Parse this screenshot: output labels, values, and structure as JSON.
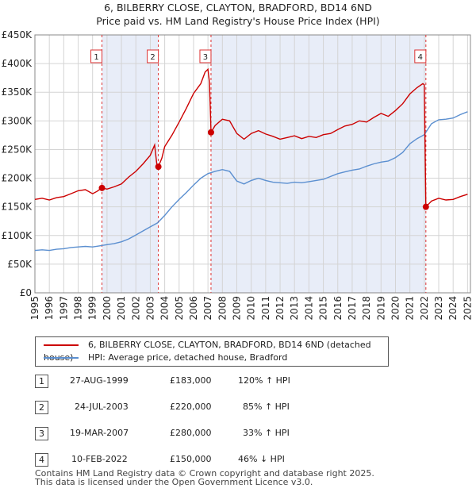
{
  "chart_data": {
    "type": "line",
    "title": "6, BILBERRY CLOSE, CLAYTON, BRADFORD, BD14 6ND",
    "subtitle": "Price paid vs. HM Land Registry's House Price Index (HPI)",
    "ylim": [
      0,
      450000
    ],
    "xlim": [
      1995,
      2025.2
    ],
    "y_ticks": [
      0,
      50000,
      100000,
      150000,
      200000,
      250000,
      300000,
      350000,
      400000,
      450000
    ],
    "y_tick_labels": [
      "£0",
      "£50K",
      "£100K",
      "£150K",
      "£200K",
      "£250K",
      "£300K",
      "£350K",
      "£400K",
      "£450K"
    ],
    "x_ticks": [
      "1995",
      "1996",
      "1997",
      "1998",
      "1999",
      "2000",
      "2001",
      "2002",
      "2003",
      "2004",
      "2005",
      "2006",
      "2007",
      "2008",
      "2009",
      "2010",
      "2011",
      "2012",
      "2013",
      "2014",
      "2015",
      "2016",
      "2017",
      "2018",
      "2019",
      "2020",
      "2021",
      "2022",
      "2023",
      "2024",
      "2025"
    ],
    "grid": true,
    "shaded_ranges": [
      [
        1999.65,
        2003.56
      ],
      [
        2007.21,
        2022.11
      ]
    ],
    "series": [
      {
        "name": "6, BILBERRY CLOSE, CLAYTON, BRADFORD, BD14 6ND (detached house)",
        "color": "#cc0000",
        "points": [
          [
            1995.0,
            163000
          ],
          [
            1995.5,
            165000
          ],
          [
            1996.0,
            162000
          ],
          [
            1996.5,
            166000
          ],
          [
            1997.0,
            168000
          ],
          [
            1997.5,
            173000
          ],
          [
            1998.0,
            178000
          ],
          [
            1998.5,
            180000
          ],
          [
            1999.0,
            173000
          ],
          [
            1999.3,
            177000
          ],
          [
            1999.65,
            183000
          ],
          [
            2000.0,
            181000
          ],
          [
            2000.5,
            185000
          ],
          [
            2001.0,
            190000
          ],
          [
            2001.5,
            202000
          ],
          [
            2002.0,
            212000
          ],
          [
            2002.5,
            225000
          ],
          [
            2003.0,
            240000
          ],
          [
            2003.3,
            258000
          ],
          [
            2003.45,
            225000
          ],
          [
            2003.56,
            220000
          ],
          [
            2003.8,
            235000
          ],
          [
            2004.0,
            255000
          ],
          [
            2004.5,
            275000
          ],
          [
            2005.0,
            298000
          ],
          [
            2005.5,
            322000
          ],
          [
            2006.0,
            348000
          ],
          [
            2006.5,
            365000
          ],
          [
            2006.8,
            385000
          ],
          [
            2007.0,
            390000
          ],
          [
            2007.1,
            368000
          ],
          [
            2007.21,
            280000
          ],
          [
            2007.5,
            292000
          ],
          [
            2008.0,
            303000
          ],
          [
            2008.5,
            300000
          ],
          [
            2009.0,
            278000
          ],
          [
            2009.5,
            268000
          ],
          [
            2010.0,
            278000
          ],
          [
            2010.5,
            283000
          ],
          [
            2011.0,
            277000
          ],
          [
            2011.5,
            273000
          ],
          [
            2012.0,
            268000
          ],
          [
            2012.5,
            271000
          ],
          [
            2013.0,
            274000
          ],
          [
            2013.5,
            269000
          ],
          [
            2014.0,
            273000
          ],
          [
            2014.5,
            271000
          ],
          [
            2015.0,
            276000
          ],
          [
            2015.5,
            278000
          ],
          [
            2016.0,
            285000
          ],
          [
            2016.5,
            291000
          ],
          [
            2017.0,
            294000
          ],
          [
            2017.5,
            300000
          ],
          [
            2018.0,
            298000
          ],
          [
            2018.5,
            306000
          ],
          [
            2019.0,
            313000
          ],
          [
            2019.5,
            308000
          ],
          [
            2020.0,
            318000
          ],
          [
            2020.5,
            330000
          ],
          [
            2021.0,
            347000
          ],
          [
            2021.5,
            358000
          ],
          [
            2021.9,
            365000
          ],
          [
            2022.0,
            363000
          ],
          [
            2022.11,
            150000
          ],
          [
            2022.5,
            160000
          ],
          [
            2023.0,
            165000
          ],
          [
            2023.5,
            162000
          ],
          [
            2024.0,
            163000
          ],
          [
            2024.5,
            168000
          ],
          [
            2025.0,
            172000
          ]
        ]
      },
      {
        "name": "HPI: Average price, detached house, Bradford",
        "color": "#5b8fd0",
        "points": [
          [
            1995.0,
            74000
          ],
          [
            1995.5,
            75000
          ],
          [
            1996.0,
            74000
          ],
          [
            1996.5,
            76000
          ],
          [
            1997.0,
            77000
          ],
          [
            1997.5,
            79000
          ],
          [
            1998.0,
            80000
          ],
          [
            1998.5,
            81000
          ],
          [
            1999.0,
            80000
          ],
          [
            1999.5,
            82000
          ],
          [
            2000.0,
            84000
          ],
          [
            2000.5,
            86000
          ],
          [
            2001.0,
            89000
          ],
          [
            2001.5,
            94000
          ],
          [
            2002.0,
            101000
          ],
          [
            2002.5,
            108000
          ],
          [
            2003.0,
            115000
          ],
          [
            2003.5,
            122000
          ],
          [
            2004.0,
            135000
          ],
          [
            2004.5,
            150000
          ],
          [
            2005.0,
            163000
          ],
          [
            2005.5,
            175000
          ],
          [
            2006.0,
            188000
          ],
          [
            2006.5,
            200000
          ],
          [
            2007.0,
            208000
          ],
          [
            2007.5,
            212000
          ],
          [
            2008.0,
            215000
          ],
          [
            2008.5,
            212000
          ],
          [
            2009.0,
            195000
          ],
          [
            2009.5,
            190000
          ],
          [
            2010.0,
            196000
          ],
          [
            2010.5,
            200000
          ],
          [
            2011.0,
            196000
          ],
          [
            2011.5,
            193000
          ],
          [
            2012.0,
            192000
          ],
          [
            2012.5,
            191000
          ],
          [
            2013.0,
            193000
          ],
          [
            2013.5,
            192000
          ],
          [
            2014.0,
            194000
          ],
          [
            2014.5,
            196000
          ],
          [
            2015.0,
            198000
          ],
          [
            2015.5,
            203000
          ],
          [
            2016.0,
            208000
          ],
          [
            2016.5,
            211000
          ],
          [
            2017.0,
            214000
          ],
          [
            2017.5,
            216000
          ],
          [
            2018.0,
            221000
          ],
          [
            2018.5,
            225000
          ],
          [
            2019.0,
            228000
          ],
          [
            2019.5,
            230000
          ],
          [
            2020.0,
            236000
          ],
          [
            2020.5,
            245000
          ],
          [
            2021.0,
            260000
          ],
          [
            2021.5,
            269000
          ],
          [
            2022.0,
            276000
          ],
          [
            2022.5,
            295000
          ],
          [
            2023.0,
            302000
          ],
          [
            2023.5,
            303000
          ],
          [
            2024.0,
            305000
          ],
          [
            2024.5,
            311000
          ],
          [
            2025.0,
            316000
          ]
        ]
      }
    ],
    "sale_markers": [
      {
        "label": "1",
        "x": 1999.65,
        "y": 183000
      },
      {
        "label": "2",
        "x": 2003.56,
        "y": 220000
      },
      {
        "label": "3",
        "x": 2007.21,
        "y": 280000
      },
      {
        "label": "4",
        "x": 2022.11,
        "y": 150000
      }
    ]
  },
  "legend": {
    "items": [
      {
        "label": "6, BILBERRY CLOSE, CLAYTON, BRADFORD, BD14 6ND (detached house)",
        "color": "#cc0000"
      },
      {
        "label": "HPI: Average price, detached house, Bradford",
        "color": "#5b8fd0"
      }
    ]
  },
  "sales": [
    {
      "num": "1",
      "date": "27-AUG-1999",
      "price": "£183,000",
      "hpi": "120% ↑ HPI"
    },
    {
      "num": "2",
      "date": "24-JUL-2003",
      "price": "£220,000",
      "hpi": "85% ↑ HPI"
    },
    {
      "num": "3",
      "date": "19-MAR-2007",
      "price": "£280,000",
      "hpi": "33% ↑ HPI"
    },
    {
      "num": "4",
      "date": "10-FEB-2022",
      "price": "£150,000",
      "hpi": "46% ↓ HPI"
    }
  ],
  "footer": {
    "line1": "Contains HM Land Registry data © Crown copyright and database right 2025.",
    "line2": "This data is licensed under the Open Government Licence v3.0."
  }
}
